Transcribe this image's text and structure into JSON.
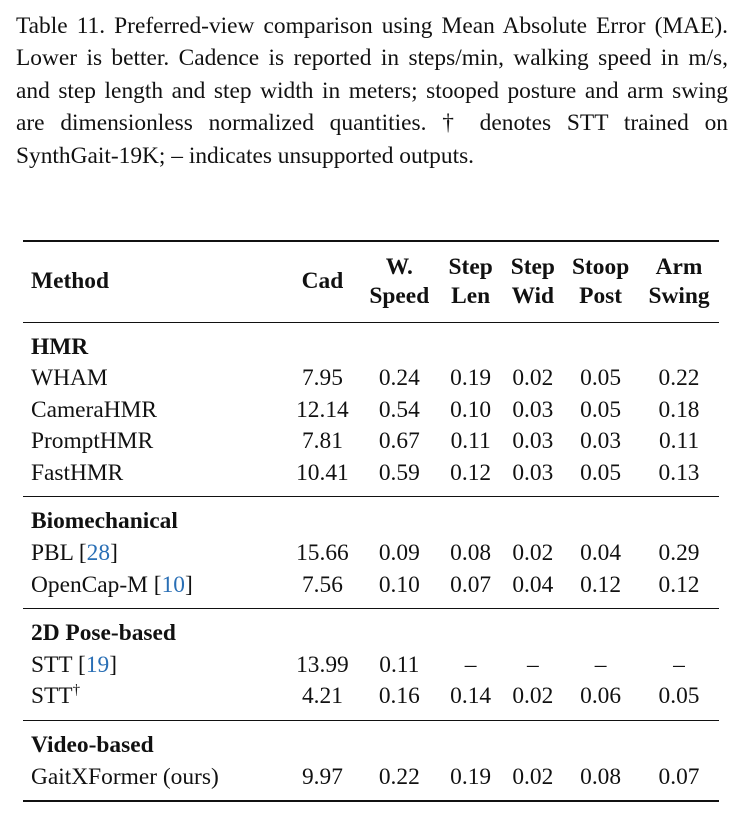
{
  "caption": "Table 11. Preferred-view comparison using Mean Absolute Error (MAE). Lower is better. Cadence is reported in steps/min, walking speed in m/s, and step length and step width in meters; stooped posture and arm swing are dimensionless normalized quantities. † denotes STT trained on SynthGait-19K; – indicates unsupported outputs.",
  "header": {
    "method": "Method",
    "cad": "Cad",
    "speed_1": "W.",
    "speed_2": "Speed",
    "len_1": "Step",
    "len_2": "Len",
    "wid_1": "Step",
    "wid_2": "Wid",
    "stoop_1": "Stoop",
    "stoop_2": "Post",
    "arm_1": "Arm",
    "arm_2": "Swing"
  },
  "groups": [
    {
      "name": "HMR",
      "rows": [
        {
          "method": "WHAM",
          "cad": "7.95",
          "speed": "0.24",
          "len": "0.19",
          "wid": "0.02",
          "stoop": "0.05",
          "arm": "0.22"
        },
        {
          "method": "CameraHMR",
          "cad": "12.14",
          "speed": "0.54",
          "len": "0.10",
          "wid": "0.03",
          "stoop": "0.05",
          "arm": "0.18"
        },
        {
          "method": "PromptHMR",
          "cad": "7.81",
          "speed": "0.67",
          "len": "0.11",
          "wid": "0.03",
          "stoop": "0.03",
          "arm": "0.11"
        },
        {
          "method": "FastHMR",
          "cad": "10.41",
          "speed": "0.59",
          "len": "0.12",
          "wid": "0.03",
          "stoop": "0.05",
          "arm": "0.13"
        }
      ]
    },
    {
      "name": "Biomechanical",
      "rows": [
        {
          "method": "PBL",
          "cite": "28",
          "cad": "15.66",
          "speed": "0.09",
          "len": "0.08",
          "wid": "0.02",
          "stoop": "0.04",
          "arm": "0.29"
        },
        {
          "method": "OpenCap-M",
          "cite": "10",
          "cad": "7.56",
          "speed": "0.10",
          "len": "0.07",
          "wid": "0.04",
          "stoop": "0.12",
          "arm": "0.12"
        }
      ]
    },
    {
      "name": "2D Pose-based",
      "rows": [
        {
          "method": "STT",
          "cite": "19",
          "cad": "13.99",
          "speed": "0.11",
          "len": "–",
          "wid": "–",
          "stoop": "–",
          "arm": "–"
        },
        {
          "method": "STT",
          "dagger": "†",
          "cad": "4.21",
          "speed": "0.16",
          "len": "0.14",
          "wid": "0.02",
          "stoop": "0.06",
          "arm": "0.05"
        }
      ]
    },
    {
      "name": "Video-based",
      "rows": [
        {
          "method": "GaitXFormer (ours)",
          "cad": "9.97",
          "speed": "0.22",
          "len": "0.19",
          "wid": "0.02",
          "stoop": "0.08",
          "arm": "0.07"
        }
      ]
    }
  ]
}
